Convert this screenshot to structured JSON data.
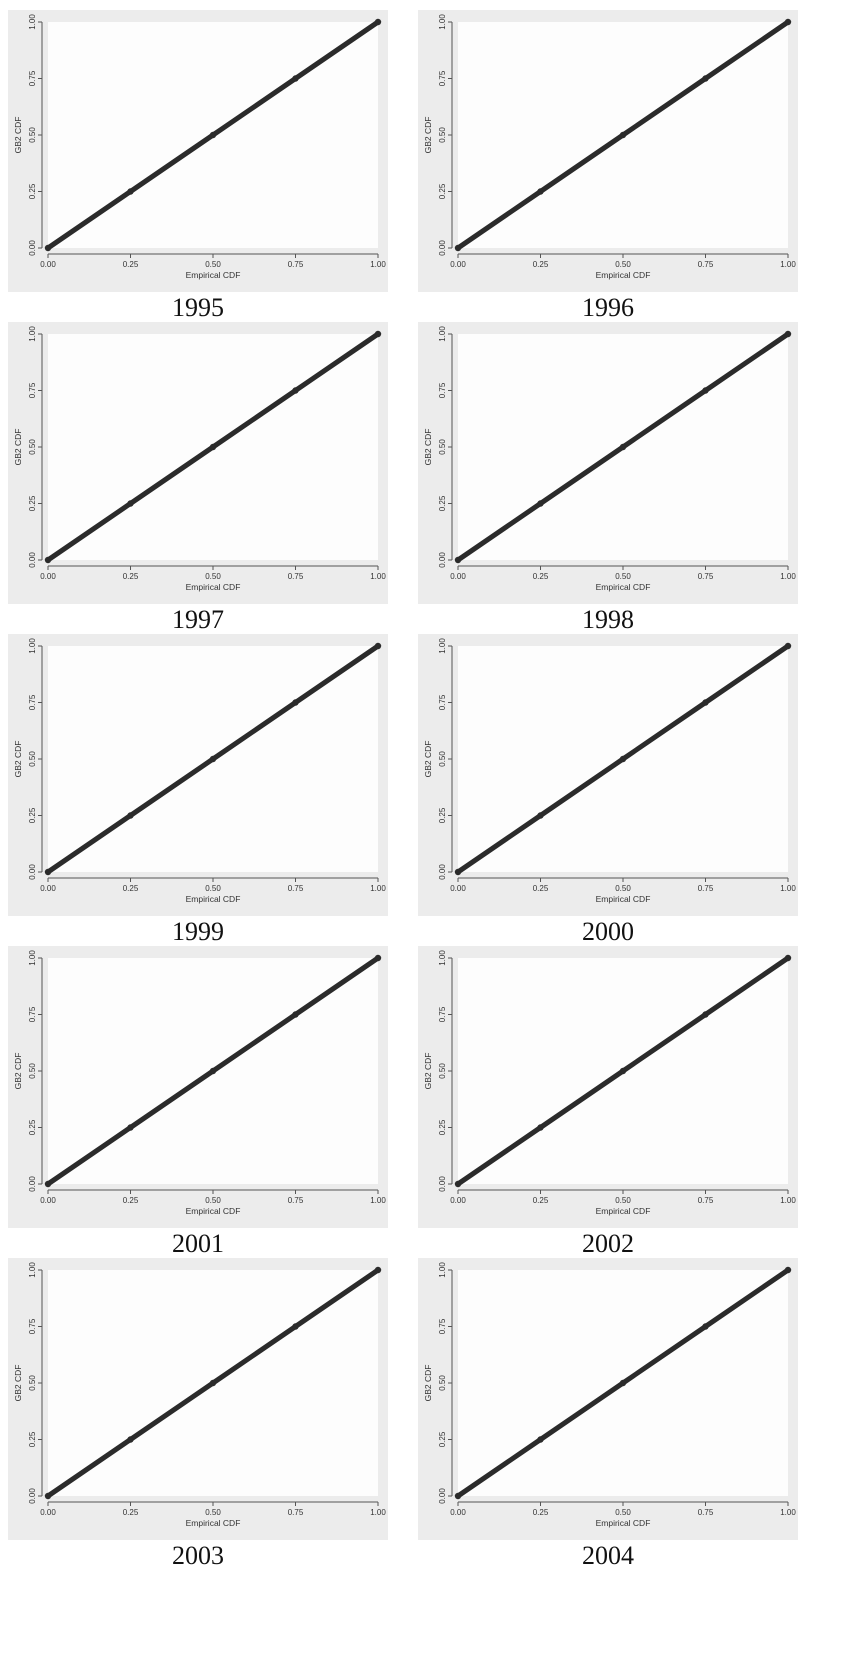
{
  "chart_data": [
    {
      "type": "scatter",
      "caption": "1995",
      "ylabel": "GB2 CDF",
      "xlabel": "Empirical CDF",
      "xlim": [
        0,
        1
      ],
      "ylim": [
        0,
        1
      ],
      "xticks": [
        "0.00",
        "0.25",
        "0.50",
        "0.75",
        "1.00"
      ],
      "yticks": [
        "0.00",
        "0.25",
        "0.50",
        "0.75",
        "1.00"
      ],
      "x": [
        0,
        0.25,
        0.5,
        0.75,
        1
      ],
      "y": [
        0,
        0.25,
        0.5,
        0.75,
        1
      ]
    },
    {
      "type": "scatter",
      "caption": "1996",
      "ylabel": "GB2 CDF",
      "xlabel": "Empirical CDF",
      "xlim": [
        0,
        1
      ],
      "ylim": [
        0,
        1
      ],
      "xticks": [
        "0.00",
        "0.25",
        "0.50",
        "0.75",
        "1.00"
      ],
      "yticks": [
        "0.00",
        "0.25",
        "0.50",
        "0.75",
        "1.00"
      ],
      "x": [
        0,
        0.25,
        0.5,
        0.75,
        1
      ],
      "y": [
        0,
        0.25,
        0.5,
        0.75,
        1
      ]
    },
    {
      "type": "scatter",
      "caption": "1997",
      "ylabel": "GB2 CDF",
      "xlabel": "Empirical CDF",
      "xlim": [
        0,
        1
      ],
      "ylim": [
        0,
        1
      ],
      "xticks": [
        "0.00",
        "0.25",
        "0.50",
        "0.75",
        "1.00"
      ],
      "yticks": [
        "0.00",
        "0.25",
        "0.50",
        "0.75",
        "1.00"
      ],
      "x": [
        0,
        0.25,
        0.5,
        0.75,
        1
      ],
      "y": [
        0,
        0.25,
        0.5,
        0.75,
        1
      ]
    },
    {
      "type": "scatter",
      "caption": "1998",
      "ylabel": "GB2 CDF",
      "xlabel": "Empirical CDF",
      "xlim": [
        0,
        1
      ],
      "ylim": [
        0,
        1
      ],
      "xticks": [
        "0.00",
        "0.25",
        "0.50",
        "0.75",
        "1.00"
      ],
      "yticks": [
        "0.00",
        "0.25",
        "0.50",
        "0.75",
        "1.00"
      ],
      "x": [
        0,
        0.25,
        0.5,
        0.75,
        1
      ],
      "y": [
        0,
        0.25,
        0.5,
        0.75,
        1
      ]
    },
    {
      "type": "scatter",
      "caption": "1999",
      "ylabel": "GB2 CDF",
      "xlabel": "Empirical CDF",
      "xlim": [
        0,
        1
      ],
      "ylim": [
        0,
        1
      ],
      "xticks": [
        "0.00",
        "0.25",
        "0.50",
        "0.75",
        "1.00"
      ],
      "yticks": [
        "0.00",
        "0.25",
        "0.50",
        "0.75",
        "1.00"
      ],
      "x": [
        0,
        0.25,
        0.5,
        0.75,
        1
      ],
      "y": [
        0,
        0.25,
        0.5,
        0.75,
        1
      ]
    },
    {
      "type": "scatter",
      "caption": "2000",
      "ylabel": "GB2 CDF",
      "xlabel": "Empirical CDF",
      "xlim": [
        0,
        1
      ],
      "ylim": [
        0,
        1
      ],
      "xticks": [
        "0.00",
        "0.25",
        "0.50",
        "0.75",
        "1.00"
      ],
      "yticks": [
        "0.00",
        "0.25",
        "0.50",
        "0.75",
        "1.00"
      ],
      "x": [
        0,
        0.25,
        0.5,
        0.75,
        1
      ],
      "y": [
        0,
        0.25,
        0.5,
        0.75,
        1
      ]
    },
    {
      "type": "scatter",
      "caption": "2001",
      "ylabel": "GB2 CDF",
      "xlabel": "Empirical CDF",
      "xlim": [
        0,
        1
      ],
      "ylim": [
        0,
        1
      ],
      "xticks": [
        "0.00",
        "0.25",
        "0.50",
        "0.75",
        "1.00"
      ],
      "yticks": [
        "0.00",
        "0.25",
        "0.50",
        "0.75",
        "1.00"
      ],
      "x": [
        0,
        0.25,
        0.5,
        0.75,
        1
      ],
      "y": [
        0,
        0.25,
        0.5,
        0.75,
        1
      ]
    },
    {
      "type": "scatter",
      "caption": "2002",
      "ylabel": "GB2 CDF",
      "xlabel": "Empirical CDF",
      "xlim": [
        0,
        1
      ],
      "ylim": [
        0,
        1
      ],
      "xticks": [
        "0.00",
        "0.25",
        "0.50",
        "0.75",
        "1.00"
      ],
      "yticks": [
        "0.00",
        "0.25",
        "0.50",
        "0.75",
        "1.00"
      ],
      "x": [
        0,
        0.25,
        0.5,
        0.75,
        1
      ],
      "y": [
        0,
        0.25,
        0.5,
        0.75,
        1
      ]
    },
    {
      "type": "scatter",
      "caption": "2003",
      "ylabel": "GB2 CDF",
      "xlabel": "Empirical CDF",
      "xlim": [
        0,
        1
      ],
      "ylim": [
        0,
        1
      ],
      "xticks": [
        "0.00",
        "0.25",
        "0.50",
        "0.75",
        "1.00"
      ],
      "yticks": [
        "0.00",
        "0.25",
        "0.50",
        "0.75",
        "1.00"
      ],
      "x": [
        0,
        0.25,
        0.5,
        0.75,
        1
      ],
      "y": [
        0,
        0.25,
        0.5,
        0.75,
        1
      ]
    },
    {
      "type": "scatter",
      "caption": "2004",
      "ylabel": "GB2 CDF",
      "xlabel": "Empirical CDF",
      "xlim": [
        0,
        1
      ],
      "ylim": [
        0,
        1
      ],
      "xticks": [
        "0.00",
        "0.25",
        "0.50",
        "0.75",
        "1.00"
      ],
      "yticks": [
        "0.00",
        "0.25",
        "0.50",
        "0.75",
        "1.00"
      ],
      "x": [
        0,
        0.25,
        0.5,
        0.75,
        1
      ],
      "y": [
        0,
        0.25,
        0.5,
        0.75,
        1
      ]
    }
  ],
  "colors": {
    "panel_bg": "#ececec",
    "plot_bg": "#fdfdfd",
    "marker": "#2b2b2b",
    "axis": "#555555",
    "text": "#333333"
  }
}
